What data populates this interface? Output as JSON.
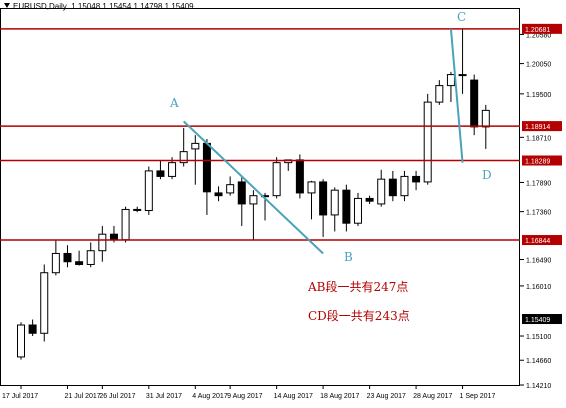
{
  "header": {
    "symbol": "EURUSD,Daily",
    "ohlc": "1.15048 1.15454 1.14798 1.15409"
  },
  "colors": {
    "bull_body": "#ffffff",
    "bear_body": "#000000",
    "wick": "#000000",
    "level_line": "#b40000",
    "trend_line": "#4aa3b8",
    "level_label_bg": "#b40000",
    "last_price_bg": "#000000",
    "axis": "#000000",
    "grid": "none"
  },
  "points": {
    "A": "A",
    "B": "B",
    "C": "C",
    "D": "D"
  },
  "annotations": {
    "ab": "AB段一共有247点",
    "cd": "CD段一共有243点"
  },
  "chart_data": {
    "type": "candlestick",
    "title": "",
    "grid": false,
    "ylim": [
      1.1421,
      1.2106
    ],
    "y_ticks": [
      "1.20580",
      "1.20050",
      "1.19500",
      "1.18710",
      "1.17890",
      "1.17360",
      "1.16490",
      "1.16010",
      "1.15100",
      "1.14660",
      "1.14210"
    ],
    "x_ticks": [
      {
        "i": 0,
        "label": "17 Jul 2017"
      },
      {
        "i": 4,
        "label": "21 Jul 2017"
      },
      {
        "i": 7,
        "label": "26 Jul 2017"
      },
      {
        "i": 11,
        "label": "31 Jul 2017"
      },
      {
        "i": 15,
        "label": "4 Aug 2017"
      },
      {
        "i": 18,
        "label": "9 Aug 2017"
      },
      {
        "i": 22,
        "label": "14 Aug 2017"
      },
      {
        "i": 26,
        "label": "18 Aug 2017"
      },
      {
        "i": 30,
        "label": "23 Aug 2017"
      },
      {
        "i": 34,
        "label": "28 Aug 2017"
      },
      {
        "i": 38,
        "label": "1 Sep 2017"
      }
    ],
    "candles": [
      {
        "o": 1.1472,
        "h": 1.1535,
        "l": 1.1467,
        "c": 1.153
      },
      {
        "o": 1.153,
        "h": 1.154,
        "l": 1.151,
        "c": 1.1515
      },
      {
        "o": 1.1515,
        "h": 1.164,
        "l": 1.15,
        "c": 1.1625
      },
      {
        "o": 1.1625,
        "h": 1.1685,
        "l": 1.162,
        "c": 1.166
      },
      {
        "o": 1.166,
        "h": 1.1675,
        "l": 1.1635,
        "c": 1.1645
      },
      {
        "o": 1.1645,
        "h": 1.1665,
        "l": 1.1638,
        "c": 1.164
      },
      {
        "o": 1.164,
        "h": 1.168,
        "l": 1.1635,
        "c": 1.1665
      },
      {
        "o": 1.1665,
        "h": 1.171,
        "l": 1.1645,
        "c": 1.1695
      },
      {
        "o": 1.1695,
        "h": 1.171,
        "l": 1.168,
        "c": 1.1685
      },
      {
        "o": 1.1685,
        "h": 1.1745,
        "l": 1.168,
        "c": 1.174
      },
      {
        "o": 1.174,
        "h": 1.1745,
        "l": 1.1735,
        "c": 1.174
      },
      {
        "o": 1.1738,
        "h": 1.1818,
        "l": 1.173,
        "c": 1.181
      },
      {
        "o": 1.181,
        "h": 1.183,
        "l": 1.1795,
        "c": 1.18
      },
      {
        "o": 1.18,
        "h": 1.1835,
        "l": 1.1795,
        "c": 1.1825
      },
      {
        "o": 1.1825,
        "h": 1.1888,
        "l": 1.1818,
        "c": 1.1845
      },
      {
        "o": 1.185,
        "h": 1.1875,
        "l": 1.1785,
        "c": 1.186
      },
      {
        "o": 1.186,
        "h": 1.1868,
        "l": 1.173,
        "c": 1.1772
      },
      {
        "o": 1.177,
        "h": 1.1782,
        "l": 1.1755,
        "c": 1.1765
      },
      {
        "o": 1.177,
        "h": 1.18,
        "l": 1.1765,
        "c": 1.1785
      },
      {
        "o": 1.179,
        "h": 1.1798,
        "l": 1.171,
        "c": 1.175
      },
      {
        "o": 1.175,
        "h": 1.1775,
        "l": 1.1685,
        "c": 1.1765
      },
      {
        "o": 1.1765,
        "h": 1.177,
        "l": 1.172,
        "c": 1.1765
      },
      {
        "o": 1.1765,
        "h": 1.1835,
        "l": 1.176,
        "c": 1.1825
      },
      {
        "o": 1.1825,
        "h": 1.183,
        "l": 1.181,
        "c": 1.183
      },
      {
        "o": 1.183,
        "h": 1.184,
        "l": 1.176,
        "c": 1.177
      },
      {
        "o": 1.177,
        "h": 1.1792,
        "l": 1.1722,
        "c": 1.179
      },
      {
        "o": 1.179,
        "h": 1.1795,
        "l": 1.169,
        "c": 1.173
      },
      {
        "o": 1.173,
        "h": 1.178,
        "l": 1.17,
        "c": 1.1775
      },
      {
        "o": 1.1775,
        "h": 1.1785,
        "l": 1.17,
        "c": 1.1715
      },
      {
        "o": 1.1715,
        "h": 1.177,
        "l": 1.171,
        "c": 1.176
      },
      {
        "o": 1.176,
        "h": 1.1765,
        "l": 1.175,
        "c": 1.1755
      },
      {
        "o": 1.175,
        "h": 1.1812,
        "l": 1.1745,
        "c": 1.1795
      },
      {
        "o": 1.1795,
        "h": 1.181,
        "l": 1.1755,
        "c": 1.1765
      },
      {
        "o": 1.1765,
        "h": 1.181,
        "l": 1.1755,
        "c": 1.18
      },
      {
        "o": 1.18,
        "h": 1.181,
        "l": 1.1775,
        "c": 1.179
      },
      {
        "o": 1.179,
        "h": 1.195,
        "l": 1.1785,
        "c": 1.1935
      },
      {
        "o": 1.1935,
        "h": 1.1975,
        "l": 1.193,
        "c": 1.1965
      },
      {
        "o": 1.1965,
        "h": 1.199,
        "l": 1.1935,
        "c": 1.1985
      },
      {
        "o": 1.1985,
        "h": 1.2068,
        "l": 1.195,
        "c": 1.1985
      },
      {
        "o": 1.1975,
        "h": 1.1985,
        "l": 1.1875,
        "c": 1.189
      },
      {
        "o": 1.189,
        "h": 1.193,
        "l": 1.185,
        "c": 1.192
      }
    ],
    "levels": [
      {
        "value": 1.20681,
        "label": "1.20681"
      },
      {
        "value": 1.18914,
        "label": "1.18914"
      },
      {
        "value": 1.18289,
        "label": "1.18289"
      },
      {
        "value": 1.16844,
        "label": "1.16844"
      }
    ],
    "last_price": {
      "value": 1.15409,
      "label": "1.15409"
    },
    "trend_lines": [
      {
        "from": "A",
        "to": "B",
        "i1": 14,
        "p1": 1.19,
        "i2": 26,
        "p2": 1.166
      },
      {
        "from": "C",
        "to": "D",
        "i1": 37,
        "p1": 1.2068,
        "i2": 38,
        "p2": 1.1825
      }
    ]
  }
}
